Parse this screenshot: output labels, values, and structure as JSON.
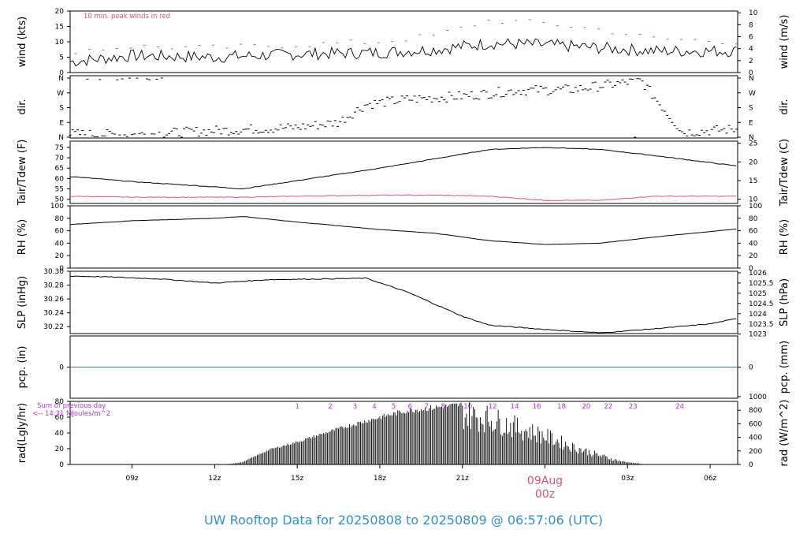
{
  "title": "UW Rooftop Data for 20250808  to  20250809 @ 06:57:06  (UTC)",
  "colors": {
    "line": "#000000",
    "accent": "#e0507a",
    "precip": "#4a6fb0",
    "title": "#2f8fd0",
    "sun": "#b038d8"
  },
  "time_axis": {
    "start_hour": 6.75,
    "end_hour": 31.0,
    "ticks": [
      "09z",
      "12z",
      "15z",
      "18z",
      "21z",
      "00z",
      "03z",
      "06z"
    ],
    "date_label": "09Aug",
    "date_sub_label": "00z"
  },
  "panels": [
    {
      "key": "wind",
      "left_label": "wind (kts)",
      "right_label": "wind (m/s)",
      "left_ticks": [
        "0",
        "5",
        "10",
        "15",
        "20"
      ],
      "right_ticks": [
        "0",
        "2",
        "4",
        "6",
        "8",
        "10"
      ],
      "annotation": "10 min. peak winds in red"
    },
    {
      "key": "dir",
      "left_label": "dir.",
      "right_label": "dir.",
      "left_ticks": [
        "N",
        "E",
        "S",
        "W",
        "N"
      ],
      "right_ticks": [
        "N",
        "E",
        "S",
        "W",
        "N"
      ]
    },
    {
      "key": "temp",
      "left_label": "Tair/Tdew (F)",
      "right_label": "Tair/Tdew (C)",
      "left_ticks": [
        "50",
        "55",
        "60",
        "65",
        "70",
        "75"
      ],
      "right_ticks": [
        "10",
        "15",
        "20",
        "25"
      ]
    },
    {
      "key": "rh",
      "left_label": "RH (%)",
      "right_label": "RH (%)",
      "left_ticks": [
        "0",
        "20",
        "40",
        "60",
        "80",
        "100"
      ],
      "right_ticks": [
        "0",
        "20",
        "40",
        "60",
        "80",
        "100"
      ]
    },
    {
      "key": "slp",
      "left_label": "SLP (inHg)",
      "right_label": "SLP (hPa)",
      "left_ticks": [
        "30.22",
        "30.24",
        "30.26",
        "30.28",
        "30.30"
      ],
      "right_ticks": [
        "1023",
        "1023.5",
        "1024",
        "1024.5",
        "1025",
        "1025.5",
        "1026"
      ]
    },
    {
      "key": "pcp",
      "left_label": "pcp. (in)",
      "right_label": "pcp. (mm)",
      "left_ticks": [
        "0"
      ],
      "right_ticks": [
        "0"
      ]
    },
    {
      "key": "rad",
      "left_label": "rad(Lgly/hr)",
      "right_label": "rad (W/m^2)",
      "left_ticks": [
        "0",
        "20",
        "40",
        "60",
        "80"
      ],
      "right_ticks": [
        "0",
        "200",
        "400",
        "600",
        "800",
        "1000"
      ],
      "note_line1": "Sum of previous day",
      "note_line2": "<-- 14.31 MJoules/m^2",
      "hour_markers": [
        "1",
        "2",
        "3",
        "4",
        "5",
        "6",
        "7",
        "8",
        "10",
        "12",
        "14",
        "16",
        "18",
        "20",
        "22",
        "23",
        "24"
      ]
    }
  ],
  "chart_data": [
    {
      "type": "line",
      "title": "",
      "ylabel": "wind (kts)",
      "ylim": [
        0,
        20
      ],
      "x": [
        6.75,
        9,
        12,
        15,
        18,
        20,
        22,
        24,
        26,
        28,
        31
      ],
      "series": [
        {
          "values": [
            3.5,
            5.5,
            5,
            6,
            6.5,
            7.5,
            9.5,
            9,
            8,
            7,
            7
          ]
        },
        {
          "name": "10 min. peak winds in red",
          "values": [
            7,
            8.5,
            8,
            9,
            10,
            12,
            17,
            16,
            14,
            11,
            10
          ]
        }
      ]
    },
    {
      "type": "scatter",
      "title": "",
      "ylabel": "dir.",
      "ylim": [
        0,
        360
      ],
      "x": [
        6.75,
        9,
        12,
        15,
        16.5,
        17.5,
        19,
        21,
        23,
        25,
        27.5,
        29,
        31
      ],
      "series": [
        {
          "values": [
            20,
            15,
            40,
            60,
            90,
            200,
            230,
            250,
            285,
            290,
            345,
            30,
            50
          ]
        }
      ]
    },
    {
      "type": "line",
      "title": "",
      "ylabel": "Tair/Tdew (F)",
      "ylim": [
        48,
        78
      ],
      "x": [
        6.75,
        9,
        12,
        13,
        15,
        18,
        20,
        22,
        24,
        26,
        28,
        31
      ],
      "series": [
        {
          "name": "Tair",
          "values": [
            61,
            58.5,
            56,
            55,
            59,
            65,
            69.5,
            74,
            75,
            74,
            71,
            66
          ]
        },
        {
          "name": "Tdew",
          "values": [
            51.5,
            51,
            51,
            51,
            51.5,
            52,
            52,
            51.5,
            49.5,
            49.5,
            51.5,
            51.5
          ]
        }
      ]
    },
    {
      "type": "line",
      "title": "",
      "ylabel": "RH (%)",
      "ylim": [
        0,
        100
      ],
      "x": [
        6.75,
        9,
        12,
        13,
        15,
        18,
        20,
        22,
        24,
        26,
        28,
        31
      ],
      "series": [
        {
          "values": [
            70,
            76,
            80,
            83,
            74,
            62,
            56,
            44,
            38,
            40,
            50,
            63
          ]
        }
      ]
    },
    {
      "type": "line",
      "title": "",
      "ylabel": "SLP (inHg)",
      "ylim": [
        30.21,
        30.3
      ],
      "x": [
        6.75,
        8,
        10,
        12,
        14,
        16,
        17.5,
        19,
        21,
        22,
        24,
        26,
        28,
        30,
        31
      ],
      "series": [
        {
          "values": [
            30.293,
            30.292,
            30.289,
            30.283,
            30.288,
            30.289,
            30.29,
            30.27,
            30.235,
            30.222,
            30.216,
            30.211,
            30.217,
            30.224,
            30.232
          ]
        }
      ]
    },
    {
      "type": "line",
      "title": "",
      "ylabel": "pcp. (in)",
      "ylim": [
        -0.5,
        0.5
      ],
      "x": [
        6.75,
        31
      ],
      "series": [
        {
          "values": [
            0,
            0
          ]
        }
      ]
    },
    {
      "type": "bar",
      "title": "",
      "ylabel": "rad(Lgly/hr)",
      "ylim": [
        0,
        80
      ],
      "x": [
        12.5,
        13,
        14,
        15,
        16,
        17,
        18,
        19,
        20,
        21,
        22,
        23,
        24,
        25,
        26,
        26.5,
        27,
        27.5
      ],
      "series": [
        {
          "values": [
            0.5,
            3,
            20,
            30,
            42,
            53,
            63,
            72,
            76,
            80,
            72,
            58,
            45,
            28,
            14,
            8,
            3,
            1
          ]
        }
      ]
    }
  ]
}
